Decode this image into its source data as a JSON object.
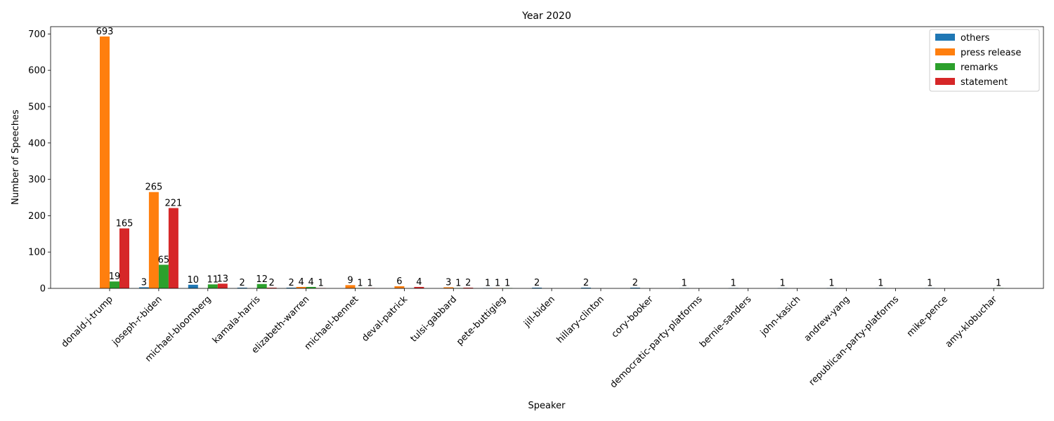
{
  "chart_data": {
    "type": "bar",
    "title": "Year 2020",
    "xlabel": "Speaker",
    "ylabel": "Number of Speeches",
    "ylim": [
      0,
      720
    ],
    "yticks": [
      0,
      100,
      200,
      300,
      400,
      500,
      600,
      700
    ],
    "legend_position": "top-right",
    "categories": [
      "donald-j-trump",
      "joseph-r-biden",
      "michael-bloomberg",
      "kamala-harris",
      "elizabeth-warren",
      "michael-bennet",
      "deval-patrick",
      "tulsi-gabbard",
      "pete-buttigieg",
      "jill-biden",
      "hillary-clinton",
      "cory-booker",
      "democratic-party-platforms",
      "bernie-sanders",
      "john-kasich",
      "andrew-yang",
      "republican-party-platforms",
      "mike-pence",
      "amy-klobuchar"
    ],
    "series": [
      {
        "name": "others",
        "color": "#1f77b4",
        "values": [
          null,
          3,
          10,
          2,
          2,
          null,
          null,
          null,
          1,
          2,
          2,
          2,
          1,
          1,
          1,
          1,
          1,
          1,
          null
        ]
      },
      {
        "name": "press release",
        "color": "#ff7f0e",
        "values": [
          693,
          265,
          null,
          null,
          4,
          9,
          6,
          3,
          1,
          null,
          null,
          null,
          null,
          null,
          null,
          null,
          null,
          null,
          null
        ]
      },
      {
        "name": "remarks",
        "color": "#2ca02c",
        "values": [
          19,
          65,
          11,
          12,
          4,
          1,
          null,
          1,
          1,
          null,
          null,
          null,
          null,
          null,
          null,
          null,
          null,
          null,
          1
        ]
      },
      {
        "name": "statement",
        "color": "#d62728",
        "values": [
          165,
          221,
          13,
          2,
          1,
          1,
          4,
          2,
          null,
          null,
          null,
          null,
          null,
          null,
          null,
          null,
          null,
          null,
          null
        ]
      }
    ]
  }
}
